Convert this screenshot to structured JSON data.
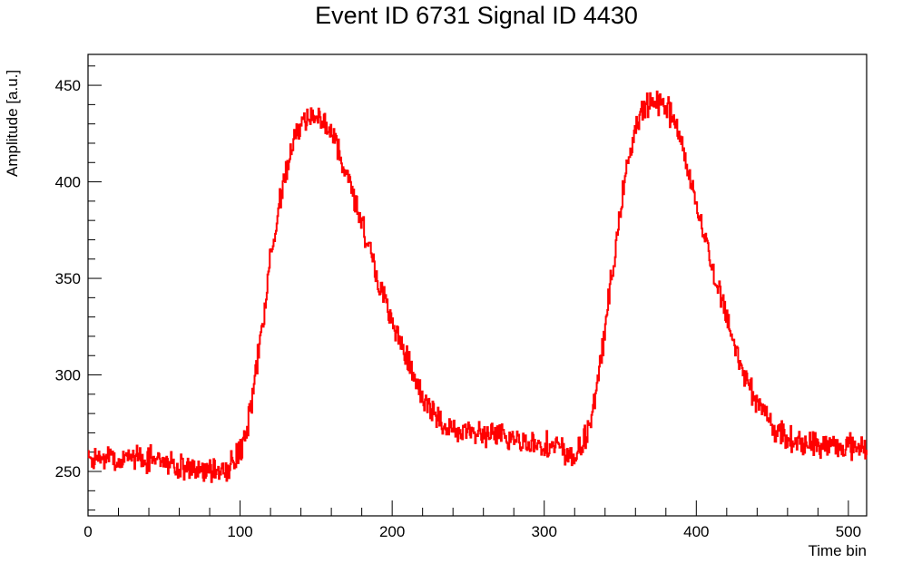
{
  "chart_data": {
    "type": "line",
    "title": "Event ID 6731 Signal ID 4430",
    "xlabel": "Time bin",
    "ylabel": "Amplitude [a.u.]",
    "xlim": [
      0,
      512
    ],
    "ylim": [
      227,
      466
    ],
    "xticks": [
      0,
      100,
      200,
      300,
      400,
      500
    ],
    "xtick_labels": [
      "0",
      "100",
      "200",
      "300",
      "400",
      "500"
    ],
    "yticks": [
      250,
      300,
      350,
      400,
      450
    ],
    "ytick_labels": [
      "250",
      "300",
      "350",
      "400",
      "450"
    ],
    "grid": false,
    "line_color": "#ff0000",
    "series": [
      {
        "x": [
          0,
          10,
          20,
          30,
          40,
          50,
          60,
          70,
          80,
          90,
          95,
          100,
          105,
          110,
          115,
          120,
          125,
          130,
          135,
          140,
          145,
          150,
          155,
          160,
          165,
          170,
          175,
          180,
          185,
          190,
          195,
          200,
          205,
          210,
          215,
          220,
          225,
          230,
          240,
          250,
          260,
          270,
          280,
          290,
          300,
          310,
          315,
          320,
          325,
          330,
          335,
          340,
          345,
          350,
          355,
          360,
          365,
          370,
          375,
          380,
          385,
          390,
          395,
          400,
          405,
          410,
          415,
          420,
          425,
          430,
          435,
          440,
          445,
          450,
          455,
          460,
          470,
          480,
          490,
          500,
          510,
          512
        ],
        "values": [
          256,
          257,
          255,
          257,
          257,
          255,
          252,
          250,
          248,
          252,
          255,
          260,
          275,
          300,
          330,
          362,
          385,
          407,
          422,
          431,
          434,
          435,
          432,
          425,
          415,
          403,
          392,
          380,
          365,
          350,
          338,
          327,
          316,
          307,
          297,
          288,
          281,
          277,
          272,
          270,
          269,
          268,
          267,
          265,
          264,
          262,
          259,
          258,
          263,
          276,
          296,
          325,
          356,
          386,
          411,
          428,
          437,
          441,
          442,
          439,
          432,
          420,
          405,
          388,
          372,
          357,
          343,
          329,
          316,
          304,
          294,
          286,
          279,
          273,
          270,
          267,
          265,
          264,
          263,
          263,
          263,
          263
        ]
      }
    ]
  }
}
